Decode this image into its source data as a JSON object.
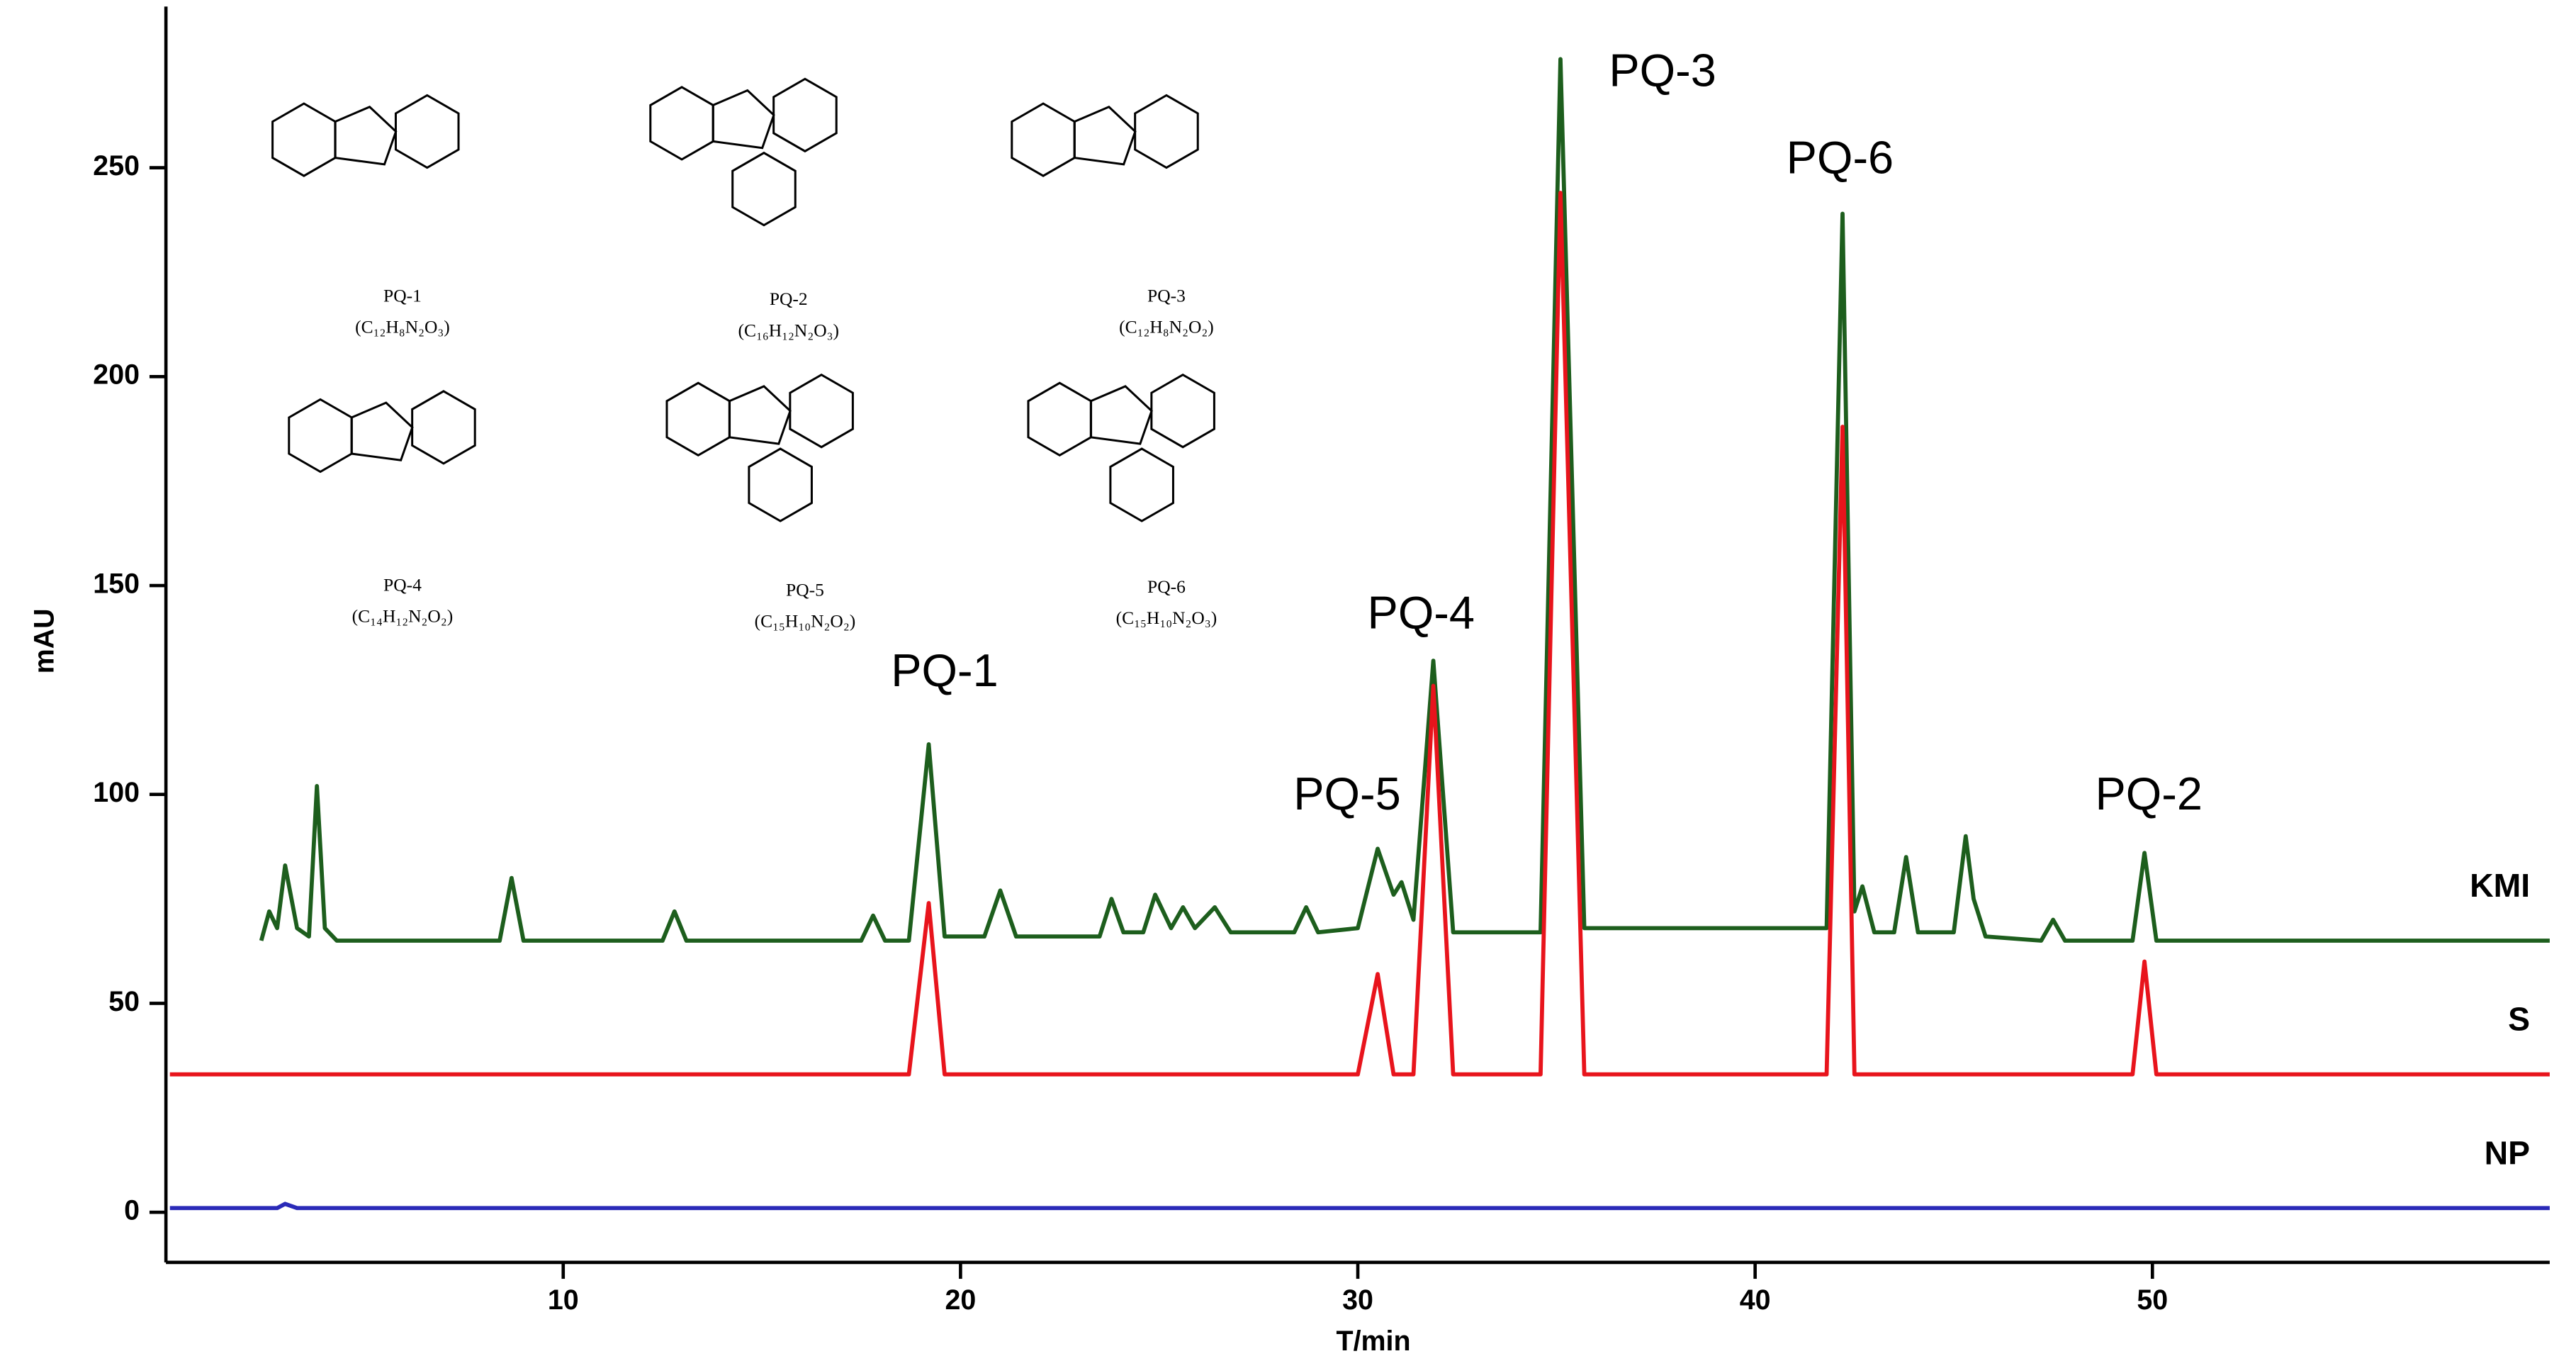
{
  "chart_data": {
    "type": "line",
    "x_label": "T/min",
    "y_label": "mAU",
    "x": [
      0.1,
      2.4,
      2.6,
      2.8,
      3.0,
      3.3,
      3.6,
      3.8,
      4.0,
      4.3,
      8.4,
      8.7,
      9.0,
      12.5,
      12.8,
      13.1,
      17.5,
      17.8,
      18.1,
      18.7,
      19.2,
      19.6,
      20.6,
      21.0,
      21.4,
      23.5,
      23.8,
      24.1,
      24.6,
      24.9,
      25.3,
      25.6,
      25.9,
      26.4,
      26.8,
      28.4,
      28.7,
      29.0,
      30.0,
      30.5,
      30.9,
      31.1,
      31.4,
      31.9,
      32.4,
      34.6,
      35.1,
      35.7,
      41.8,
      42.2,
      42.5,
      42.7,
      43.0,
      43.5,
      43.8,
      44.1,
      45.0,
      45.3,
      45.5,
      45.8,
      47.2,
      47.5,
      47.8,
      49.5,
      49.8,
      50.1,
      60
    ],
    "series": [
      {
        "name": "KMI",
        "color": "#1d5e1d",
        "values": [
          null,
          65,
          72,
          68,
          83,
          68,
          66,
          102,
          68,
          65,
          65,
          80,
          65,
          65,
          72,
          65,
          65,
          71,
          65,
          65,
          112,
          66,
          66,
          77,
          66,
          66,
          75,
          67,
          67,
          76,
          68,
          73,
          68,
          73,
          67,
          67,
          73,
          67,
          68,
          87,
          76,
          79,
          70,
          132,
          67,
          67,
          276,
          68,
          68,
          239,
          72,
          78,
          67,
          67,
          85,
          67,
          67,
          90,
          75,
          66,
          65,
          70,
          65,
          65,
          86,
          65,
          65
        ]
      },
      {
        "name": "S",
        "color": "#e8141c",
        "values": [
          33,
          33,
          33,
          33,
          33,
          33,
          33,
          33,
          33,
          33,
          33,
          33,
          33,
          33,
          33,
          33,
          33,
          33,
          33,
          33,
          74,
          33,
          33,
          33,
          33,
          33,
          33,
          33,
          33,
          33,
          33,
          33,
          33,
          33,
          33,
          33,
          33,
          33,
          33,
          57,
          33,
          33,
          33,
          126,
          33,
          33,
          244,
          33,
          33,
          188,
          33,
          33,
          33,
          33,
          33,
          33,
          33,
          33,
          33,
          33,
          33,
          33,
          33,
          33,
          60,
          33,
          33
        ]
      },
      {
        "name": "NP",
        "color": "#2a2ab8",
        "values": [
          1,
          1,
          1,
          1,
          2,
          1,
          1,
          1,
          1,
          1,
          1,
          1,
          1,
          1,
          1,
          1,
          1,
          1,
          1,
          1,
          1,
          1,
          1,
          1,
          1,
          1,
          1,
          1,
          1,
          1,
          1,
          1,
          1,
          1,
          1,
          1,
          1,
          1,
          1,
          1,
          1,
          1,
          1,
          1,
          1,
          1,
          1,
          1,
          1,
          1,
          1,
          1,
          1,
          1,
          1,
          1,
          1,
          1,
          1,
          1,
          1,
          1,
          1,
          1,
          1,
          1,
          1
        ]
      }
    ],
    "xlim": [
      0,
      60
    ],
    "xticks": [
      10,
      20,
      30,
      40,
      50
    ],
    "ylim": [
      -12,
      287
    ],
    "yticks": [
      0,
      50,
      100,
      150,
      200,
      250
    ],
    "annotations": [
      "PQ-1",
      "PQ-5",
      "PQ-4",
      "PQ-3",
      "PQ-6",
      "PQ-2"
    ],
    "structures": [
      {
        "name": "PQ-1",
        "formula": "(C₁₂H₈N₂O₃)"
      },
      {
        "name": "PQ-2",
        "formula": "(C₁₆H₁₂N₂O₃)"
      },
      {
        "name": "PQ-3",
        "formula": "(C₁₂H₈N₂O₂)"
      },
      {
        "name": "PQ-4",
        "formula": "(C₁₄H₁₂N₂O₂)"
      },
      {
        "name": "PQ-5",
        "formula": "(C₁₅H₁₀N₂O₂)"
      },
      {
        "name": "PQ-6",
        "formula": "(C₁₅H₁₀N₂O₃)"
      }
    ]
  }
}
